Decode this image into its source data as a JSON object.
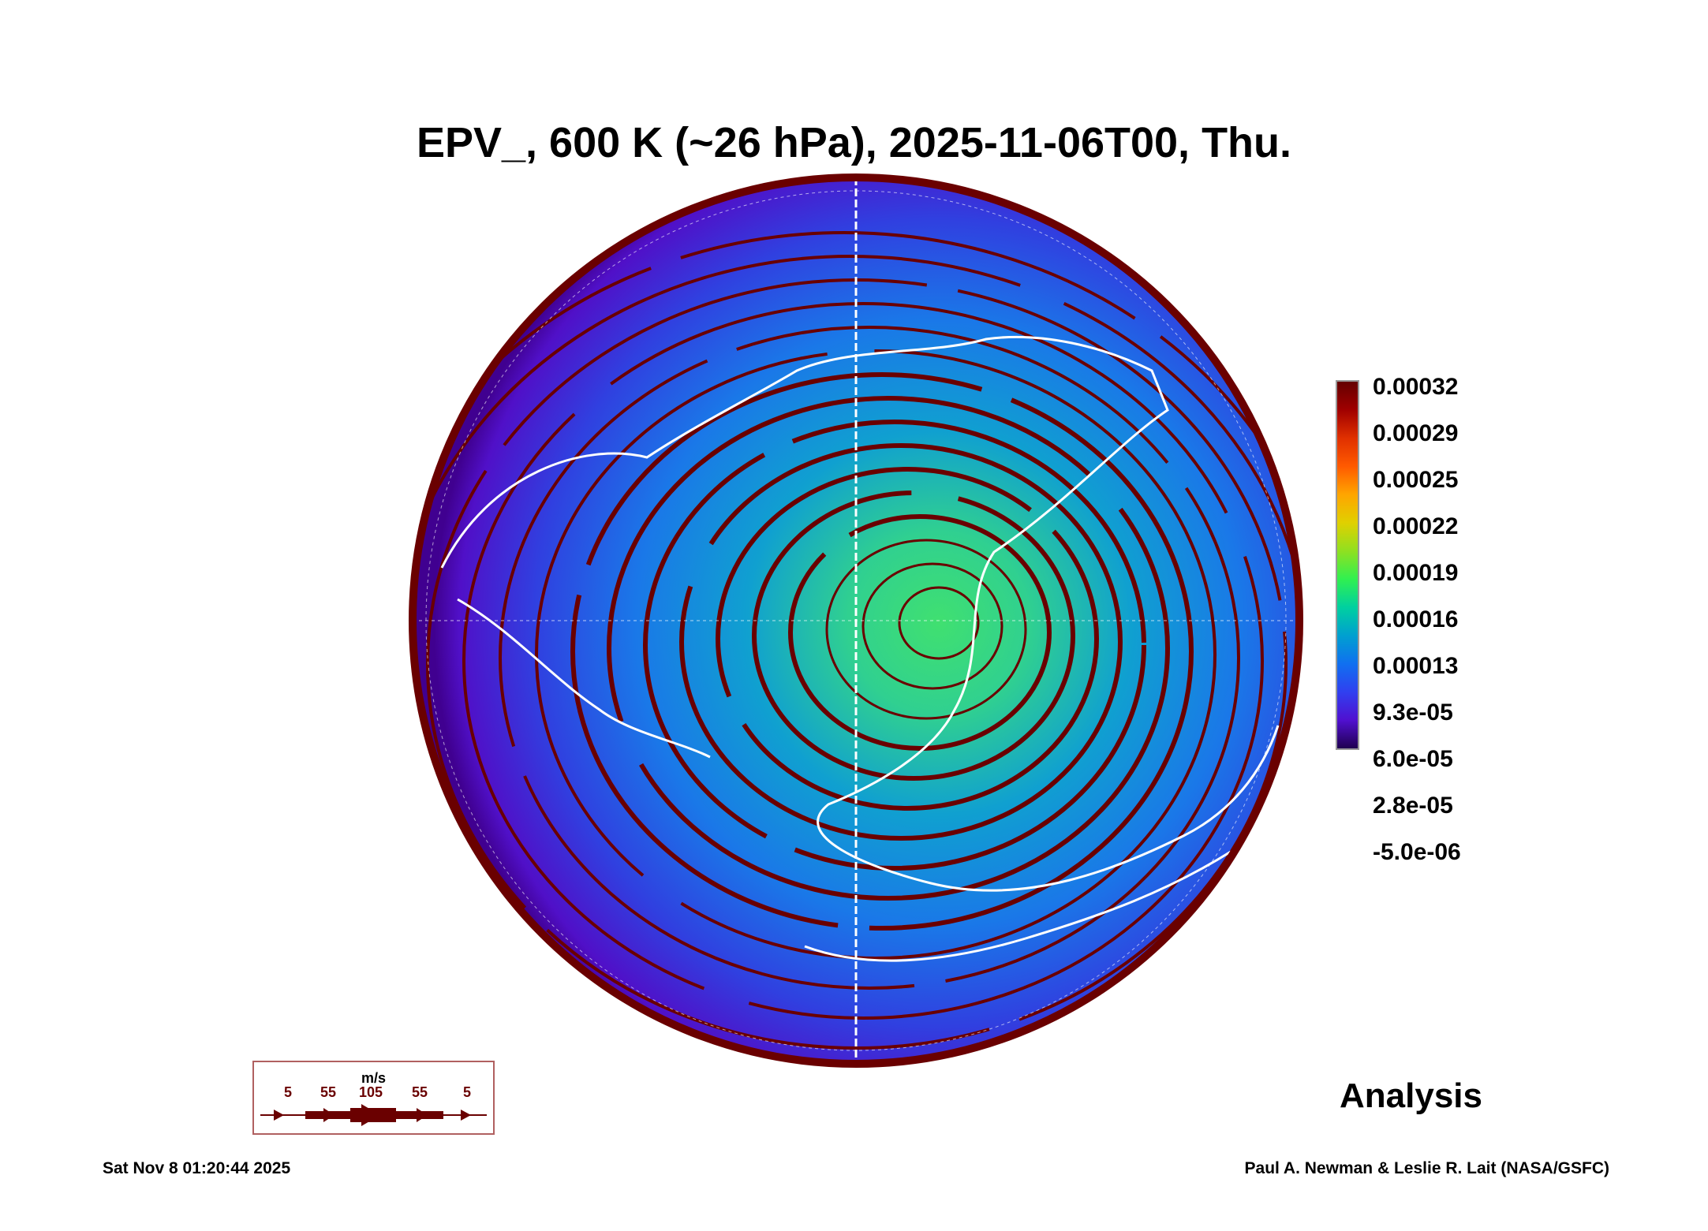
{
  "title": "EPV_, 600 K (~26 hPa), 2025-11-06T00, Thu.",
  "colorbar": {
    "ticks": [
      "0.00032",
      "0.00029",
      "0.00025",
      "0.00022",
      "0.00019",
      "0.00016",
      "0.00013",
      "9.3e-05",
      "6.0e-05",
      "2.8e-05",
      "-5.0e-06"
    ],
    "range": [
      -5e-06,
      0.00032
    ]
  },
  "wind_legend": {
    "unit": "m/s",
    "speeds": [
      "5",
      "55",
      "105",
      "55",
      "5"
    ],
    "color": "#6a0000"
  },
  "label": "Analysis",
  "footer": {
    "timestamp": "Sat Nov  8 01:20:44 2025",
    "credit": "Paul A. Newman & Leslie R. Lait (NASA/GSFC)"
  },
  "colors": {
    "streamline": "#6a0000",
    "coast": "#ffffff"
  }
}
